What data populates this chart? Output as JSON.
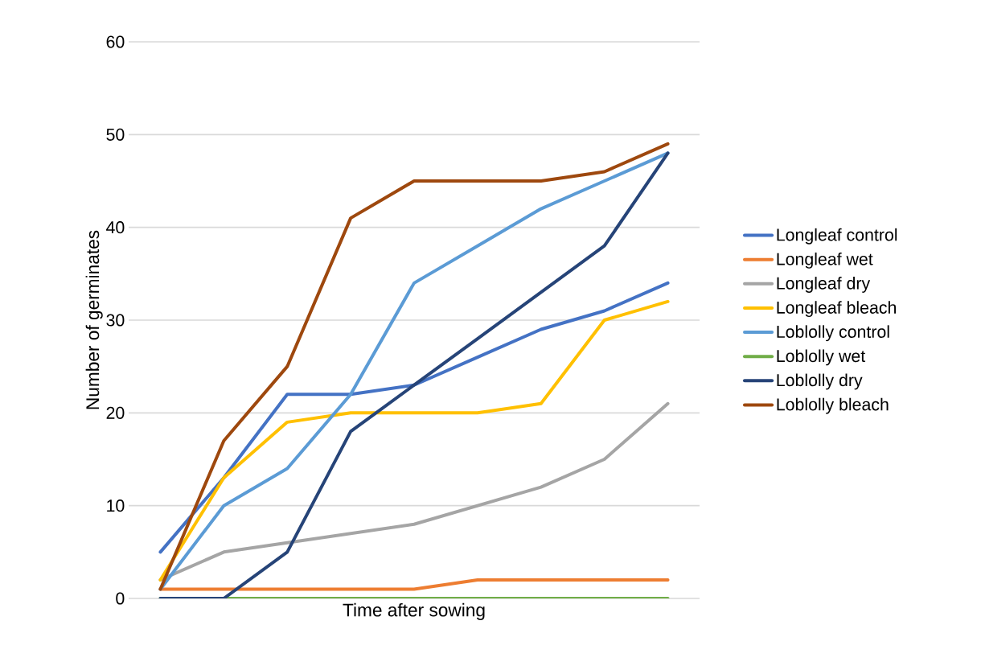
{
  "chart_data": {
    "type": "line",
    "xlabel": "Time after sowing",
    "ylabel": "Number of germinates",
    "categories": [
      null,
      null,
      null,
      null,
      null,
      null,
      null,
      null,
      null
    ],
    "ylim": [
      0,
      60
    ],
    "yticks": [
      0,
      10,
      20,
      30,
      40,
      50,
      60
    ],
    "grid": "y",
    "legend": "right",
    "marker": "none",
    "line_style": "solid",
    "series": [
      {
        "name": "Longleaf control",
        "color": "#4472c4",
        "values": [
          5,
          13,
          22,
          22,
          23,
          26,
          29,
          31,
          34
        ]
      },
      {
        "name": "Longleaf wet",
        "color": "#ed7d31",
        "values": [
          1,
          1,
          1,
          1,
          1,
          2,
          2,
          2,
          2
        ]
      },
      {
        "name": "Longleaf dry",
        "color": "#a5a5a5",
        "values": [
          2,
          5,
          6,
          7,
          8,
          10,
          12,
          15,
          21
        ]
      },
      {
        "name": "Longleaf bleach",
        "color": "#ffc000",
        "values": [
          2,
          13,
          19,
          20,
          20,
          20,
          21,
          30,
          32
        ]
      },
      {
        "name": "Loblolly control",
        "color": "#5b9bd5",
        "values": [
          1,
          10,
          14,
          22,
          34,
          38,
          42,
          45,
          48
        ]
      },
      {
        "name": "Loblolly wet",
        "color": "#70ad47",
        "values": [
          0,
          0,
          0,
          0,
          0,
          0,
          0,
          0,
          0
        ]
      },
      {
        "name": "Loblolly dry",
        "color": "#264478",
        "values": [
          0,
          0,
          5,
          18,
          23,
          28,
          33,
          38,
          48
        ]
      },
      {
        "name": "Loblolly bleach",
        "color": "#9e480e",
        "values": [
          1,
          17,
          25,
          41,
          45,
          45,
          45,
          46,
          49
        ]
      }
    ]
  }
}
